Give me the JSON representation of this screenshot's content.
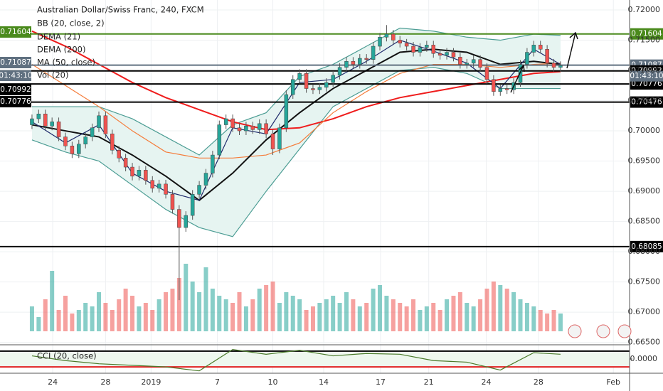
{
  "chart_data": {
    "type": "candlestick",
    "title": "Australian Dollar/Swiss Franc, 240, FXCM",
    "legend": [
      "BB (20, close, 2)",
      "DEMA (21)",
      "DEMA (200)",
      "MA (50, close)",
      "Vol (20)"
    ],
    "up_color": "#26a69a",
    "down_color": "#ef5350",
    "open": [
      0.701,
      0.702,
      0.7028,
      0.7008,
      0.7015,
      0.699,
      0.6975,
      0.6962,
      0.6978,
      0.699,
      0.7005,
      0.7025,
      0.6995,
      0.6968,
      0.6955,
      0.694,
      0.6925,
      0.6935,
      0.6918,
      0.6905,
      0.6912,
      0.6895,
      0.687,
      0.684,
      0.686,
      0.6895,
      0.691,
      0.693,
      0.696,
      0.701,
      0.702,
      0.7005,
      0.7,
      0.7008,
      0.7002,
      0.7012,
      0.6995,
      0.697,
      0.7005,
      0.706,
      0.7085,
      0.7095,
      0.707,
      0.7068,
      0.7072,
      0.708,
      0.7092,
      0.7105,
      0.7115,
      0.711,
      0.712,
      0.7118,
      0.714,
      0.7155,
      0.716,
      0.715,
      0.7145,
      0.714,
      0.713,
      0.7138,
      0.7142,
      0.7128,
      0.7125,
      0.713,
      0.7122,
      0.711,
      0.7112,
      0.7118,
      0.7105,
      0.7085,
      0.7065,
      0.707,
      0.7068,
      0.708,
      0.711,
      0.713,
      0.7142,
      0.7135,
      0.7112,
      0.7105
    ],
    "high": [
      0.7027,
      0.7035,
      0.7035,
      0.7022,
      0.7022,
      0.6997,
      0.6982,
      0.6985,
      0.6997,
      0.7012,
      0.7032,
      0.7032,
      0.7002,
      0.6975,
      0.6962,
      0.6947,
      0.6942,
      0.6942,
      0.6925,
      0.6919,
      0.6919,
      0.6902,
      0.6877,
      0.6867,
      0.6902,
      0.6917,
      0.6937,
      0.6967,
      0.7017,
      0.7027,
      0.7027,
      0.7012,
      0.7015,
      0.7015,
      0.7019,
      0.7019,
      0.7002,
      0.7012,
      0.7067,
      0.7092,
      0.7102,
      0.7102,
      0.7077,
      0.7079,
      0.7087,
      0.7099,
      0.7112,
      0.7122,
      0.7122,
      0.7127,
      0.7127,
      0.7147,
      0.7162,
      0.7175,
      0.7167,
      0.7157,
      0.7152,
      0.7147,
      0.7145,
      0.7149,
      0.7149,
      0.7135,
      0.7137,
      0.7137,
      0.7129,
      0.7119,
      0.7125,
      0.7125,
      0.7112,
      0.7092,
      0.7077,
      0.7077,
      0.7087,
      0.7117,
      0.7137,
      0.7149,
      0.7149,
      0.7142,
      0.7119,
      0.7115
    ],
    "low": [
      0.7003,
      0.7013,
      0.7001,
      0.7001,
      0.6983,
      0.6968,
      0.6955,
      0.6955,
      0.6971,
      0.6983,
      0.6998,
      0.6988,
      0.6961,
      0.6948,
      0.6933,
      0.6918,
      0.6918,
      0.6911,
      0.6898,
      0.6898,
      0.6888,
      0.6863,
      0.672,
      0.6833,
      0.6853,
      0.6888,
      0.6903,
      0.6923,
      0.6953,
      0.7003,
      0.6998,
      0.6993,
      0.6993,
      0.6995,
      0.6995,
      0.6988,
      0.696,
      0.6963,
      0.6998,
      0.7053,
      0.7078,
      0.7063,
      0.7061,
      0.7061,
      0.7065,
      0.7073,
      0.7085,
      0.7098,
      0.7103,
      0.7103,
      0.7111,
      0.7111,
      0.7133,
      0.7148,
      0.7143,
      0.7138,
      0.7133,
      0.7123,
      0.7123,
      0.7131,
      0.7121,
      0.7118,
      0.7118,
      0.7115,
      0.7103,
      0.7103,
      0.7105,
      0.7098,
      0.7078,
      0.7058,
      0.7058,
      0.7061,
      0.7061,
      0.7073,
      0.7103,
      0.7123,
      0.7128,
      0.7105,
      0.7098,
      0.7098
    ],
    "close": [
      0.702,
      0.7028,
      0.7008,
      0.7015,
      0.699,
      0.6975,
      0.6962,
      0.6978,
      0.699,
      0.7005,
      0.7025,
      0.6995,
      0.6968,
      0.6955,
      0.694,
      0.6925,
      0.6935,
      0.6918,
      0.6905,
      0.6912,
      0.6895,
      0.687,
      0.684,
      0.686,
      0.6895,
      0.691,
      0.693,
      0.696,
      0.701,
      0.702,
      0.7005,
      0.7,
      0.7008,
      0.7002,
      0.7012,
      0.6995,
      0.697,
      0.7005,
      0.706,
      0.7085,
      0.7095,
      0.707,
      0.7068,
      0.7072,
      0.708,
      0.7092,
      0.7105,
      0.7115,
      0.711,
      0.712,
      0.7118,
      0.714,
      0.7155,
      0.716,
      0.715,
      0.7145,
      0.714,
      0.713,
      0.7138,
      0.7142,
      0.7128,
      0.7125,
      0.713,
      0.7122,
      0.711,
      0.7112,
      0.7118,
      0.7105,
      0.7085,
      0.7065,
      0.707,
      0.7068,
      0.708,
      0.711,
      0.713,
      0.7142,
      0.7135,
      0.7112,
      0.7105,
      0.7108
    ],
    "volume": [
      35,
      20,
      45,
      85,
      30,
      50,
      25,
      30,
      40,
      35,
      55,
      40,
      30,
      45,
      60,
      50,
      35,
      40,
      30,
      45,
      55,
      60,
      75,
      95,
      70,
      55,
      90,
      60,
      50,
      45,
      40,
      55,
      35,
      45,
      60,
      65,
      70,
      40,
      55,
      50,
      45,
      30,
      35,
      40,
      45,
      50,
      40,
      55,
      45,
      35,
      40,
      60,
      65,
      50,
      45,
      40,
      35,
      45,
      30,
      35,
      40,
      30,
      45,
      50,
      55,
      40,
      35,
      45,
      60,
      70,
      65,
      60,
      55,
      45,
      40,
      35,
      30,
      25,
      30,
      25
    ],
    "volume_lim": [
      0,
      100
    ],
    "ylim": [
      0.6646,
      0.72165
    ],
    "yticks": [
      {
        "value": 0.72,
        "label": "0.72000"
      },
      {
        "value": 0.715,
        "label": "0.71500"
      },
      {
        "value": 0.71,
        "label": "0.71000"
      },
      {
        "value": 0.705,
        "label": "0.70500"
      },
      {
        "value": 0.7,
        "label": "0.70000"
      },
      {
        "value": 0.695,
        "label": "0.69500"
      },
      {
        "value": 0.69,
        "label": "0.69000"
      },
      {
        "value": 0.685,
        "label": "0.68500"
      },
      {
        "value": 0.68,
        "label": "0.68000"
      },
      {
        "value": 0.675,
        "label": "0.67500"
      },
      {
        "value": 0.67,
        "label": "0.67000"
      },
      {
        "value": 0.665,
        "label": "0.66500"
      }
    ],
    "xlim": [
      -4.78,
      89.32
    ],
    "xticks": [
      {
        "value": 3.1,
        "label": "24"
      },
      {
        "value": 11,
        "label": "28"
      },
      {
        "value": 17.8,
        "label": "2019"
      },
      {
        "value": 27.7,
        "label": "7"
      },
      {
        "value": 36,
        "label": "10"
      },
      {
        "value": 43.6,
        "label": "14"
      },
      {
        "value": 52.1,
        "label": "17"
      },
      {
        "value": 59.3,
        "label": "21"
      },
      {
        "value": 67.9,
        "label": "24"
      },
      {
        "value": 75.7,
        "label": "28"
      },
      {
        "value": 86.9,
        "label": "Feb"
      }
    ],
    "band_color": "#e6f4f1",
    "lines": [
      {
        "color": "#4c9d94",
        "x": [
          0,
          5,
          10,
          15,
          20,
          25,
          30,
          35,
          40,
          45,
          50,
          55,
          60,
          65,
          70,
          75,
          79
        ],
        "values": [
          0.704,
          0.704,
          0.704,
          0.702,
          0.699,
          0.696,
          0.701,
          0.703,
          0.709,
          0.711,
          0.714,
          0.717,
          0.7165,
          0.7155,
          0.715,
          0.716,
          0.7158
        ]
      },
      {
        "color": "#4c9d94",
        "x": [
          0,
          5,
          10,
          15,
          20,
          25,
          30,
          35,
          40,
          45,
          50,
          55,
          60,
          65,
          70,
          75,
          79
        ],
        "values": [
          0.6985,
          0.6965,
          0.695,
          0.691,
          0.687,
          0.684,
          0.6825,
          0.69,
          0.697,
          0.704,
          0.707,
          0.71,
          0.7105,
          0.7095,
          0.707,
          0.707,
          0.707
        ]
      },
      {
        "color": "#ef1c1c",
        "x": [
          0,
          5,
          10,
          15,
          20,
          25,
          30,
          35,
          40,
          45,
          50,
          55,
          60,
          65,
          70,
          75,
          79
        ],
        "values": [
          0.7165,
          0.714,
          0.711,
          0.708,
          0.7055,
          0.7035,
          0.7015,
          0.7002,
          0.7005,
          0.702,
          0.704,
          0.7055,
          0.7065,
          0.7075,
          0.7085,
          0.7095,
          0.7098
        ]
      },
      {
        "color": "#f57c3a",
        "x": [
          0,
          5,
          10,
          15,
          20,
          25,
          30,
          35,
          40,
          45,
          50,
          55,
          60,
          65,
          70,
          75,
          79
        ],
        "values": [
          0.711,
          0.7075,
          0.704,
          0.7,
          0.6965,
          0.6955,
          0.6955,
          0.696,
          0.698,
          0.703,
          0.7065,
          0.7095,
          0.711,
          0.711,
          0.7105,
          0.711,
          0.7112
        ]
      },
      {
        "color": "#111111",
        "x": [
          0,
          5,
          10,
          15,
          20,
          25,
          30,
          35,
          40,
          45,
          50,
          55,
          60,
          65,
          70,
          75,
          79
        ],
        "values": [
          0.701,
          0.7,
          0.699,
          0.696,
          0.6925,
          0.6885,
          0.693,
          0.6985,
          0.703,
          0.707,
          0.71,
          0.713,
          0.7135,
          0.713,
          0.711,
          0.7115,
          0.711
        ]
      },
      {
        "color": "#1f2a6b",
        "x": [
          0,
          5,
          10,
          15,
          20,
          25,
          30,
          35,
          40,
          45,
          50,
          55,
          60,
          65,
          70,
          75,
          79
        ],
        "values": [
          0.7015,
          0.698,
          0.701,
          0.693,
          0.69,
          0.6885,
          0.7005,
          0.6995,
          0.708,
          0.7085,
          0.7115,
          0.715,
          0.7132,
          0.7112,
          0.707,
          0.7135,
          0.711
        ]
      }
    ],
    "levels": [
      {
        "value": 0.71604,
        "label": "0.71604",
        "color": "#4a8a1c"
      },
      {
        "value": 0.71087,
        "label": "0.71087",
        "color": "#607080"
      },
      {
        "value": 0.70992,
        "label": "0.70992",
        "color": "#000000"
      },
      {
        "value": 0.70776,
        "label": "0.70776",
        "color": "#000000"
      },
      {
        "value": 0.70476,
        "label": "0.70476",
        "color": "#000000"
      },
      {
        "value": 0.68085,
        "label": "0.68085",
        "color": "#000000"
      }
    ],
    "countdown": "01:43:10",
    "cci": {
      "name": "CCI (20, close)",
      "color": "#4a7a2a",
      "x": [
        0,
        5,
        10,
        15,
        20,
        25,
        30,
        35,
        40,
        45,
        50,
        55,
        60,
        65,
        70,
        75,
        79
      ],
      "values": [
        40,
        -20,
        -60,
        -80,
        -100,
        -150,
        120,
        60,
        110,
        40,
        70,
        60,
        -20,
        -40,
        -140,
        80,
        60
      ],
      "ylim": [
        -180,
        180
      ],
      "yticks": [
        {
          "value": 0,
          "label": "0.0000"
        }
      ],
      "levels": [
        {
          "value": 100,
          "color": "#000000"
        },
        {
          "value": -100,
          "color": "#e02020"
        }
      ]
    }
  }
}
